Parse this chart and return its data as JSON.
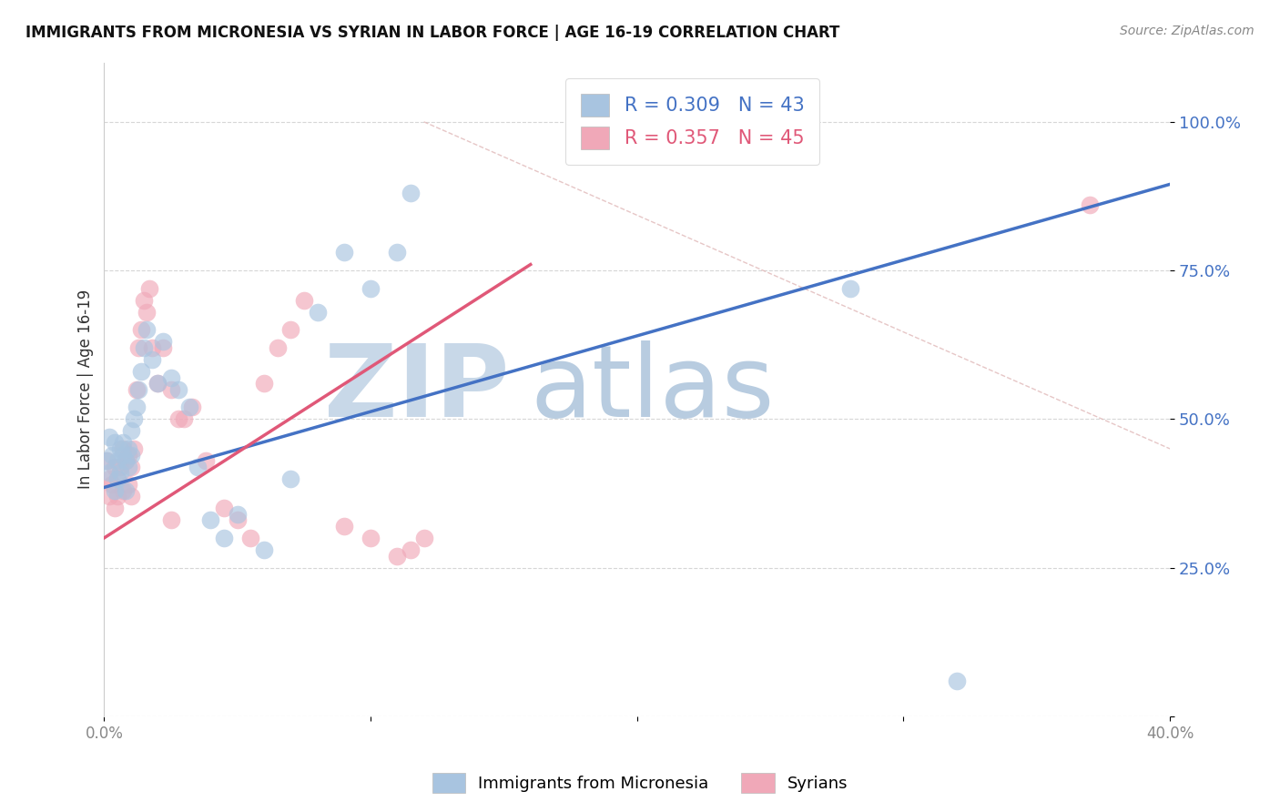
{
  "title": "IMMIGRANTS FROM MICRONESIA VS SYRIAN IN LABOR FORCE | AGE 16-19 CORRELATION CHART",
  "source_text": "Source: ZipAtlas.com",
  "ylabel": "In Labor Force | Age 16-19",
  "xlim": [
    0.0,
    0.4
  ],
  "ylim": [
    0.0,
    1.1
  ],
  "yticks": [
    0.0,
    0.25,
    0.5,
    0.75,
    1.0
  ],
  "ytick_labels": [
    "",
    "25.0%",
    "50.0%",
    "75.0%",
    "100.0%"
  ],
  "xticks": [
    0.0,
    0.1,
    0.2,
    0.3,
    0.4
  ],
  "xtick_labels": [
    "0.0%",
    "",
    "",
    "",
    "40.0%"
  ],
  "blue_color": "#a8c4e0",
  "pink_color": "#f0a8b8",
  "blue_line_color": "#4472c4",
  "pink_line_color": "#e05878",
  "ref_line_color": "#e0b8b8",
  "watermark_color_zip": "#c8d8e8",
  "watermark_color_atlas": "#b8cce0",
  "legend_R_blue": "R = 0.309",
  "legend_N_blue": "N = 43",
  "legend_R_pink": "R = 0.357",
  "legend_N_pink": "N = 45",
  "blue_scatter_x": [
    0.001,
    0.002,
    0.002,
    0.003,
    0.004,
    0.004,
    0.005,
    0.005,
    0.006,
    0.006,
    0.007,
    0.007,
    0.008,
    0.008,
    0.009,
    0.009,
    0.01,
    0.01,
    0.011,
    0.012,
    0.013,
    0.014,
    0.015,
    0.016,
    0.018,
    0.02,
    0.022,
    0.025,
    0.028,
    0.032,
    0.035,
    0.04,
    0.045,
    0.05,
    0.06,
    0.07,
    0.08,
    0.09,
    0.1,
    0.11,
    0.28,
    0.32,
    0.115
  ],
  "blue_scatter_y": [
    0.43,
    0.47,
    0.41,
    0.44,
    0.46,
    0.38,
    0.43,
    0.4,
    0.45,
    0.41,
    0.44,
    0.46,
    0.43,
    0.38,
    0.42,
    0.45,
    0.48,
    0.44,
    0.5,
    0.52,
    0.55,
    0.58,
    0.62,
    0.65,
    0.6,
    0.56,
    0.63,
    0.57,
    0.55,
    0.52,
    0.42,
    0.33,
    0.3,
    0.34,
    0.28,
    0.4,
    0.68,
    0.78,
    0.72,
    0.78,
    0.72,
    0.06,
    0.88
  ],
  "pink_scatter_x": [
    0.001,
    0.002,
    0.002,
    0.003,
    0.004,
    0.004,
    0.005,
    0.005,
    0.006,
    0.007,
    0.007,
    0.008,
    0.009,
    0.009,
    0.01,
    0.01,
    0.011,
    0.012,
    0.013,
    0.014,
    0.015,
    0.016,
    0.017,
    0.018,
    0.02,
    0.022,
    0.025,
    0.028,
    0.03,
    0.033,
    0.038,
    0.045,
    0.055,
    0.06,
    0.065,
    0.07,
    0.075,
    0.09,
    0.1,
    0.11,
    0.115,
    0.12,
    0.37,
    0.025,
    0.05
  ],
  "pink_scatter_y": [
    0.43,
    0.4,
    0.37,
    0.39,
    0.42,
    0.35,
    0.4,
    0.37,
    0.42,
    0.45,
    0.38,
    0.43,
    0.39,
    0.44,
    0.42,
    0.37,
    0.45,
    0.55,
    0.62,
    0.65,
    0.7,
    0.68,
    0.72,
    0.62,
    0.56,
    0.62,
    0.55,
    0.5,
    0.5,
    0.52,
    0.43,
    0.35,
    0.3,
    0.56,
    0.62,
    0.65,
    0.7,
    0.32,
    0.3,
    0.27,
    0.28,
    0.3,
    0.86,
    0.33,
    0.33
  ],
  "blue_line_x": [
    0.0,
    0.4
  ],
  "blue_line_y": [
    0.385,
    0.895
  ],
  "pink_line_x": [
    0.0,
    0.16
  ],
  "pink_line_y": [
    0.3,
    0.76
  ],
  "ref_line_x": [
    0.12,
    0.4
  ],
  "ref_line_y": [
    1.0,
    0.45
  ]
}
